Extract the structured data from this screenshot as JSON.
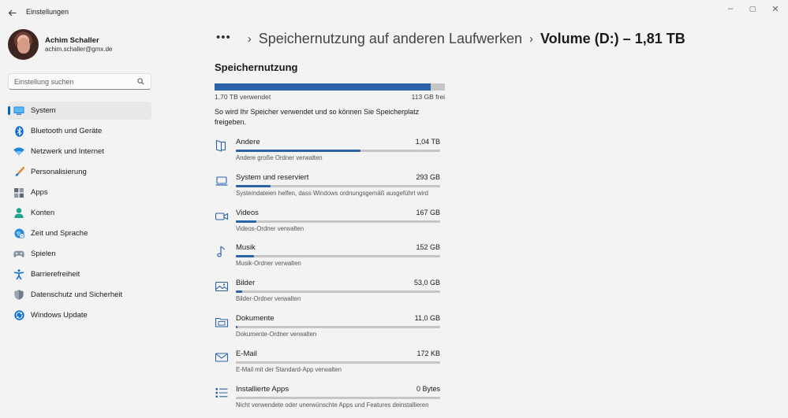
{
  "window": {
    "title": "Einstellungen",
    "controls": {
      "minimize": "–",
      "maximize": "▢",
      "close": "✕"
    }
  },
  "profile": {
    "name": "Achim Schaller",
    "email": "achim.schaller@gmx.de"
  },
  "search": {
    "placeholder": "Einstellung suchen"
  },
  "sidebar": {
    "items": [
      {
        "label": "System",
        "icon": "system-icon",
        "active": true
      },
      {
        "label": "Bluetooth und Geräte",
        "icon": "bluetooth-icon"
      },
      {
        "label": "Netzwerk und Internet",
        "icon": "wifi-icon"
      },
      {
        "label": "Personalisierung",
        "icon": "brush-icon"
      },
      {
        "label": "Apps",
        "icon": "apps-icon"
      },
      {
        "label": "Konten",
        "icon": "account-icon"
      },
      {
        "label": "Zeit und Sprache",
        "icon": "globe-clock-icon"
      },
      {
        "label": "Spielen",
        "icon": "gamepad-icon"
      },
      {
        "label": "Barrierefreiheit",
        "icon": "accessibility-icon"
      },
      {
        "label": "Datenschutz und Sicherheit",
        "icon": "shield-icon"
      },
      {
        "label": "Windows Update",
        "icon": "update-icon"
      }
    ]
  },
  "breadcrumb": {
    "more": "•••",
    "separator": "›",
    "previous": "Speichernutzung auf anderen Laufwerken",
    "current": "Volume (D:) – 1,81 TB"
  },
  "storage": {
    "title": "Speichernutzung",
    "used_label": "1,70 TB verwendet",
    "free_label": "113 GB frei",
    "used_fraction": 0.94,
    "description": "So wird Ihr Speicher verwendet und so können Sie Speicherplatz freigeben.",
    "accent": "#2b62a8",
    "categories": [
      {
        "name": "Andere",
        "size": "1,04 TB",
        "sub": "Andere große Ordner verwalten",
        "fraction": 0.61,
        "icon": "folder-open-icon"
      },
      {
        "name": "System und reserviert",
        "size": "293 GB",
        "sub": "Systemdateien helfen, dass Windows ordnungsgemäß ausgeführt wird",
        "fraction": 0.17,
        "icon": "laptop-icon"
      },
      {
        "name": "Videos",
        "size": "167 GB",
        "sub": "Videos-Ordner verwalten",
        "fraction": 0.1,
        "icon": "video-icon"
      },
      {
        "name": "Musik",
        "size": "152 GB",
        "sub": "Musik-Ordner verwalten",
        "fraction": 0.09,
        "icon": "music-note-icon"
      },
      {
        "name": "Bilder",
        "size": "53,0 GB",
        "sub": "Bilder-Ordner verwalten",
        "fraction": 0.03,
        "icon": "picture-icon"
      },
      {
        "name": "Dokumente",
        "size": "11,0 GB",
        "sub": "Dokumente-Ordner verwalten",
        "fraction": 0.006,
        "icon": "documents-folder-icon"
      },
      {
        "name": "E-Mail",
        "size": "172 KB",
        "sub": "E-Mail mit der Standard-App verwalten",
        "fraction": 0,
        "icon": "mail-icon"
      },
      {
        "name": "Installierte Apps",
        "size": "0 Bytes",
        "sub": "Nicht verwendete oder unerwünschte Apps und Features deinstallieren",
        "fraction": 0,
        "icon": "app-list-icon"
      }
    ]
  }
}
